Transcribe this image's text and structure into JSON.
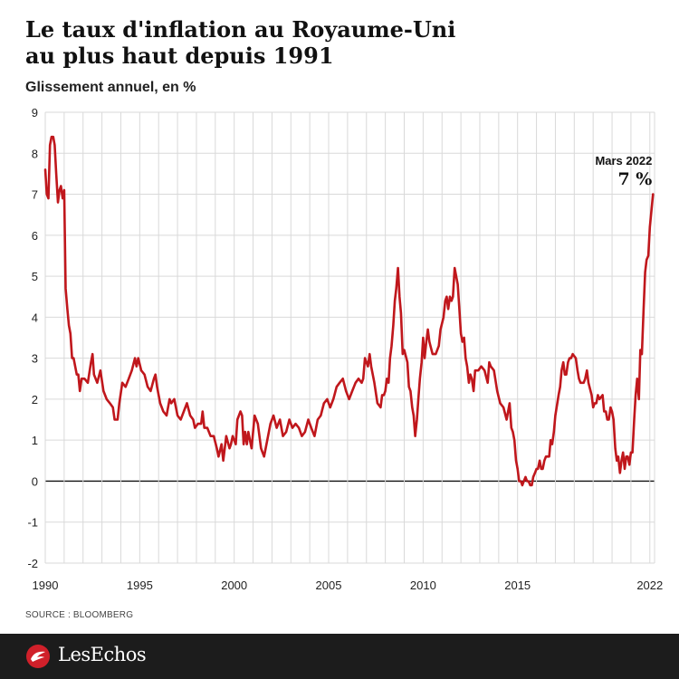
{
  "header": {
    "title_line1": "Le taux d'inflation au Royaume-Uni",
    "title_line2": "au plus haut depuis 1991",
    "subtitle": "Glissement annuel, en %"
  },
  "source": "SOURCE : BLOOMBERG",
  "footer": {
    "logo_text": "LesEchos"
  },
  "colors": {
    "line": "#c0171c",
    "grid": "#d9d9d9",
    "zero": "#111111",
    "footer_bg": "#1c1c1c"
  },
  "chart_data": {
    "type": "line",
    "title": "Le taux d'inflation au Royaume-Uni au plus haut depuis 1991",
    "ylabel": "Glissement annuel, en %",
    "xlim": [
      1990,
      2022.25
    ],
    "ylim": [
      -2,
      9
    ],
    "yticks": [
      -2,
      -1,
      0,
      1,
      2,
      3,
      4,
      5,
      6,
      7,
      8,
      9
    ],
    "xticks": [
      1990,
      1995,
      2000,
      2005,
      2010,
      2015,
      2022
    ],
    "vertical_grid": true,
    "annotation": {
      "x": 2022.17,
      "y": 7.0,
      "label": "Mars 2022",
      "value_label": "7 %"
    },
    "series": [
      {
        "points": [
          [
            1990.0,
            7.6
          ],
          [
            1990.08,
            7.0
          ],
          [
            1990.17,
            6.9
          ],
          [
            1990.25,
            8.2
          ],
          [
            1990.33,
            8.4
          ],
          [
            1990.42,
            8.4
          ],
          [
            1990.5,
            8.2
          ],
          [
            1990.58,
            7.5
          ],
          [
            1990.67,
            6.8
          ],
          [
            1990.75,
            7.1
          ],
          [
            1990.83,
            7.2
          ],
          [
            1990.92,
            6.9
          ],
          [
            1991.0,
            7.1
          ],
          [
            1991.08,
            4.7
          ],
          [
            1991.17,
            4.2
          ],
          [
            1991.25,
            3.8
          ],
          [
            1991.33,
            3.6
          ],
          [
            1991.42,
            3.0
          ],
          [
            1991.5,
            3.0
          ],
          [
            1991.67,
            2.6
          ],
          [
            1991.75,
            2.6
          ],
          [
            1991.83,
            2.2
          ],
          [
            1991.92,
            2.5
          ],
          [
            1992.08,
            2.5
          ],
          [
            1992.25,
            2.4
          ],
          [
            1992.42,
            2.9
          ],
          [
            1992.5,
            3.1
          ],
          [
            1992.58,
            2.6
          ],
          [
            1992.75,
            2.4
          ],
          [
            1992.92,
            2.7
          ],
          [
            1993.08,
            2.2
          ],
          [
            1993.25,
            2.0
          ],
          [
            1993.42,
            1.9
          ],
          [
            1993.58,
            1.8
          ],
          [
            1993.67,
            1.5
          ],
          [
            1993.83,
            1.5
          ],
          [
            1993.92,
            1.9
          ],
          [
            1994.08,
            2.4
          ],
          [
            1994.25,
            2.3
          ],
          [
            1994.42,
            2.5
          ],
          [
            1994.58,
            2.7
          ],
          [
            1994.75,
            3.0
          ],
          [
            1994.83,
            2.8
          ],
          [
            1994.92,
            3.0
          ],
          [
            1995.08,
            2.7
          ],
          [
            1995.25,
            2.6
          ],
          [
            1995.42,
            2.3
          ],
          [
            1995.58,
            2.2
          ],
          [
            1995.75,
            2.5
          ],
          [
            1995.83,
            2.6
          ],
          [
            1995.92,
            2.3
          ],
          [
            1996.08,
            1.9
          ],
          [
            1996.25,
            1.7
          ],
          [
            1996.42,
            1.6
          ],
          [
            1996.58,
            2.0
          ],
          [
            1996.67,
            1.9
          ],
          [
            1996.83,
            2.0
          ],
          [
            1997.0,
            1.6
          ],
          [
            1997.17,
            1.5
          ],
          [
            1997.33,
            1.7
          ],
          [
            1997.5,
            1.9
          ],
          [
            1997.67,
            1.6
          ],
          [
            1997.83,
            1.5
          ],
          [
            1997.92,
            1.3
          ],
          [
            1998.08,
            1.4
          ],
          [
            1998.25,
            1.4
          ],
          [
            1998.33,
            1.7
          ],
          [
            1998.42,
            1.3
          ],
          [
            1998.58,
            1.3
          ],
          [
            1998.75,
            1.1
          ],
          [
            1998.92,
            1.1
          ],
          [
            1999.08,
            0.8
          ],
          [
            1999.17,
            0.6
          ],
          [
            1999.33,
            0.9
          ],
          [
            1999.42,
            0.5
          ],
          [
            1999.58,
            1.1
          ],
          [
            1999.75,
            0.8
          ],
          [
            1999.83,
            0.9
          ],
          [
            1999.92,
            1.1
          ],
          [
            2000.08,
            0.9
          ],
          [
            2000.17,
            1.5
          ],
          [
            2000.33,
            1.7
          ],
          [
            2000.42,
            1.6
          ],
          [
            2000.5,
            0.9
          ],
          [
            2000.58,
            1.2
          ],
          [
            2000.67,
            0.9
          ],
          [
            2000.75,
            1.2
          ],
          [
            2000.92,
            0.8
          ],
          [
            2001.08,
            1.6
          ],
          [
            2001.25,
            1.4
          ],
          [
            2001.42,
            0.8
          ],
          [
            2001.58,
            0.6
          ],
          [
            2001.75,
            1.0
          ],
          [
            2001.92,
            1.4
          ],
          [
            2002.08,
            1.6
          ],
          [
            2002.25,
            1.3
          ],
          [
            2002.42,
            1.5
          ],
          [
            2002.58,
            1.1
          ],
          [
            2002.75,
            1.2
          ],
          [
            2002.92,
            1.5
          ],
          [
            2003.08,
            1.3
          ],
          [
            2003.25,
            1.4
          ],
          [
            2003.42,
            1.3
          ],
          [
            2003.58,
            1.1
          ],
          [
            2003.75,
            1.2
          ],
          [
            2003.92,
            1.5
          ],
          [
            2004.08,
            1.3
          ],
          [
            2004.25,
            1.1
          ],
          [
            2004.42,
            1.5
          ],
          [
            2004.58,
            1.6
          ],
          [
            2004.75,
            1.9
          ],
          [
            2004.92,
            2.0
          ],
          [
            2005.08,
            1.8
          ],
          [
            2005.25,
            2.0
          ],
          [
            2005.42,
            2.3
          ],
          [
            2005.58,
            2.4
          ],
          [
            2005.75,
            2.5
          ],
          [
            2005.92,
            2.2
          ],
          [
            2006.08,
            2.0
          ],
          [
            2006.25,
            2.2
          ],
          [
            2006.42,
            2.4
          ],
          [
            2006.58,
            2.5
          ],
          [
            2006.75,
            2.4
          ],
          [
            2006.83,
            2.5
          ],
          [
            2006.92,
            3.0
          ],
          [
            2007.08,
            2.8
          ],
          [
            2007.17,
            3.1
          ],
          [
            2007.25,
            2.8
          ],
          [
            2007.42,
            2.4
          ],
          [
            2007.58,
            1.9
          ],
          [
            2007.75,
            1.8
          ],
          [
            2007.83,
            2.1
          ],
          [
            2007.92,
            2.1
          ],
          [
            2008.0,
            2.2
          ],
          [
            2008.08,
            2.5
          ],
          [
            2008.17,
            2.4
          ],
          [
            2008.25,
            3.0
          ],
          [
            2008.33,
            3.3
          ],
          [
            2008.42,
            3.8
          ],
          [
            2008.5,
            4.4
          ],
          [
            2008.58,
            4.7
          ],
          [
            2008.67,
            5.2
          ],
          [
            2008.75,
            4.5
          ],
          [
            2008.83,
            4.1
          ],
          [
            2008.92,
            3.1
          ],
          [
            2009.0,
            3.2
          ],
          [
            2009.17,
            2.9
          ],
          [
            2009.25,
            2.3
          ],
          [
            2009.33,
            2.2
          ],
          [
            2009.42,
            1.8
          ],
          [
            2009.5,
            1.6
          ],
          [
            2009.58,
            1.1
          ],
          [
            2009.67,
            1.5
          ],
          [
            2009.75,
            2.0
          ],
          [
            2009.83,
            2.5
          ],
          [
            2009.92,
            2.9
          ],
          [
            2010.0,
            3.5
          ],
          [
            2010.08,
            3.0
          ],
          [
            2010.17,
            3.4
          ],
          [
            2010.25,
            3.7
          ],
          [
            2010.33,
            3.4
          ],
          [
            2010.5,
            3.1
          ],
          [
            2010.67,
            3.1
          ],
          [
            2010.75,
            3.2
          ],
          [
            2010.83,
            3.3
          ],
          [
            2010.92,
            3.7
          ],
          [
            2011.08,
            4.0
          ],
          [
            2011.17,
            4.4
          ],
          [
            2011.25,
            4.5
          ],
          [
            2011.33,
            4.2
          ],
          [
            2011.42,
            4.5
          ],
          [
            2011.5,
            4.4
          ],
          [
            2011.58,
            4.5
          ],
          [
            2011.67,
            5.2
          ],
          [
            2011.75,
            5.0
          ],
          [
            2011.83,
            4.8
          ],
          [
            2011.92,
            4.2
          ],
          [
            2012.0,
            3.6
          ],
          [
            2012.08,
            3.4
          ],
          [
            2012.17,
            3.5
          ],
          [
            2012.25,
            3.0
          ],
          [
            2012.33,
            2.8
          ],
          [
            2012.42,
            2.4
          ],
          [
            2012.5,
            2.6
          ],
          [
            2012.58,
            2.5
          ],
          [
            2012.67,
            2.2
          ],
          [
            2012.75,
            2.7
          ],
          [
            2012.92,
            2.7
          ],
          [
            2013.08,
            2.8
          ],
          [
            2013.25,
            2.7
          ],
          [
            2013.42,
            2.4
          ],
          [
            2013.5,
            2.9
          ],
          [
            2013.58,
            2.8
          ],
          [
            2013.75,
            2.7
          ],
          [
            2013.92,
            2.2
          ],
          [
            2014.08,
            1.9
          ],
          [
            2014.25,
            1.8
          ],
          [
            2014.42,
            1.5
          ],
          [
            2014.58,
            1.9
          ],
          [
            2014.67,
            1.3
          ],
          [
            2014.75,
            1.2
          ],
          [
            2014.83,
            1.0
          ],
          [
            2014.92,
            0.5
          ],
          [
            2015.0,
            0.3
          ],
          [
            2015.08,
            0.0
          ],
          [
            2015.17,
            0.0
          ],
          [
            2015.25,
            -0.1
          ],
          [
            2015.33,
            0.0
          ],
          [
            2015.42,
            0.1
          ],
          [
            2015.5,
            0.0
          ],
          [
            2015.58,
            0.0
          ],
          [
            2015.67,
            -0.1
          ],
          [
            2015.75,
            -0.1
          ],
          [
            2015.83,
            0.1
          ],
          [
            2015.92,
            0.2
          ],
          [
            2016.0,
            0.3
          ],
          [
            2016.08,
            0.3
          ],
          [
            2016.17,
            0.5
          ],
          [
            2016.25,
            0.3
          ],
          [
            2016.33,
            0.3
          ],
          [
            2016.42,
            0.5
          ],
          [
            2016.5,
            0.6
          ],
          [
            2016.67,
            0.6
          ],
          [
            2016.75,
            1.0
          ],
          [
            2016.83,
            0.9
          ],
          [
            2016.92,
            1.2
          ],
          [
            2017.0,
            1.6
          ],
          [
            2017.17,
            2.1
          ],
          [
            2017.25,
            2.3
          ],
          [
            2017.33,
            2.7
          ],
          [
            2017.42,
            2.9
          ],
          [
            2017.5,
            2.6
          ],
          [
            2017.58,
            2.6
          ],
          [
            2017.67,
            2.9
          ],
          [
            2017.75,
            3.0
          ],
          [
            2017.83,
            3.0
          ],
          [
            2017.92,
            3.1
          ],
          [
            2018.08,
            3.0
          ],
          [
            2018.17,
            2.7
          ],
          [
            2018.25,
            2.5
          ],
          [
            2018.33,
            2.4
          ],
          [
            2018.5,
            2.4
          ],
          [
            2018.58,
            2.5
          ],
          [
            2018.67,
            2.7
          ],
          [
            2018.75,
            2.4
          ],
          [
            2018.92,
            2.1
          ],
          [
            2019.0,
            1.8
          ],
          [
            2019.08,
            1.9
          ],
          [
            2019.17,
            1.9
          ],
          [
            2019.25,
            2.1
          ],
          [
            2019.33,
            2.0
          ],
          [
            2019.5,
            2.1
          ],
          [
            2019.58,
            1.7
          ],
          [
            2019.67,
            1.7
          ],
          [
            2019.75,
            1.5
          ],
          [
            2019.83,
            1.5
          ],
          [
            2019.92,
            1.8
          ],
          [
            2020.0,
            1.7
          ],
          [
            2020.08,
            1.5
          ],
          [
            2020.17,
            0.8
          ],
          [
            2020.25,
            0.5
          ],
          [
            2020.33,
            0.6
          ],
          [
            2020.42,
            0.2
          ],
          [
            2020.5,
            0.5
          ],
          [
            2020.58,
            0.7
          ],
          [
            2020.67,
            0.3
          ],
          [
            2020.75,
            0.6
          ],
          [
            2020.83,
            0.6
          ],
          [
            2020.92,
            0.4
          ],
          [
            2021.0,
            0.7
          ],
          [
            2021.08,
            0.7
          ],
          [
            2021.17,
            1.5
          ],
          [
            2021.25,
            2.1
          ],
          [
            2021.33,
            2.5
          ],
          [
            2021.42,
            2.0
          ],
          [
            2021.5,
            3.2
          ],
          [
            2021.58,
            3.1
          ],
          [
            2021.67,
            4.2
          ],
          [
            2021.75,
            5.1
          ],
          [
            2021.83,
            5.4
          ],
          [
            2021.92,
            5.5
          ],
          [
            2022.0,
            6.2
          ],
          [
            2022.17,
            7.0
          ]
        ]
      }
    ]
  }
}
